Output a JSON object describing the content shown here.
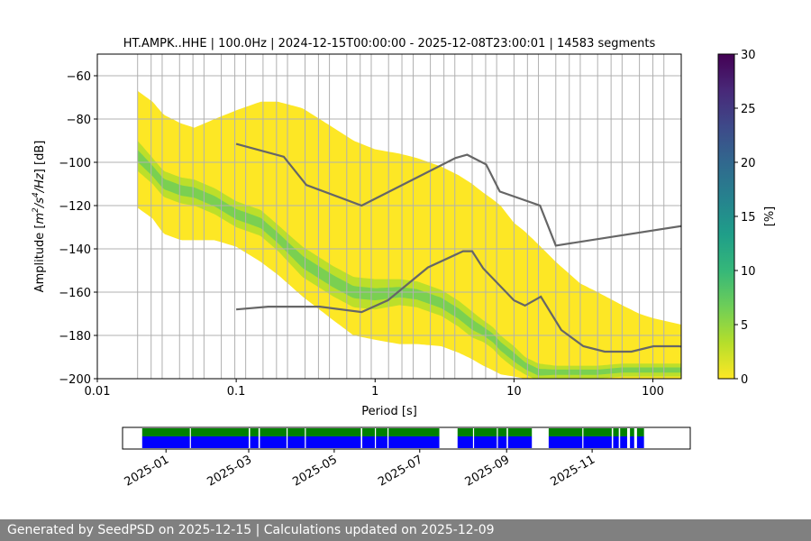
{
  "chart_data": {
    "type": "heatmap",
    "title": "HT.AMPK..HHE | 100.0Hz | 2024-12-15T00:00:00 - 2025-12-08T23:00:01 | 14583 segments",
    "xlabel": "Period [s]",
    "ylabel_parts": [
      "Amplitude [",
      "m",
      "2",
      "/",
      "s",
      "4",
      "/",
      "Hz",
      "] [dB]"
    ],
    "x_scale": "log",
    "xlim": [
      0.01,
      160
    ],
    "ylim": [
      -200,
      -50
    ],
    "x_ticks": [
      {
        "value": 0.01,
        "label": "0.01"
      },
      {
        "value": 0.1,
        "label": "0.1"
      },
      {
        "value": 1,
        "label": "1"
      },
      {
        "value": 10,
        "label": "10"
      },
      {
        "value": 100,
        "label": "100"
      }
    ],
    "y_ticks": [
      {
        "value": -60,
        "label": "−60"
      },
      {
        "value": -80,
        "label": "−80"
      },
      {
        "value": -100,
        "label": "−100"
      },
      {
        "value": -120,
        "label": "−120"
      },
      {
        "value": -140,
        "label": "−140"
      },
      {
        "value": -160,
        "label": "−160"
      },
      {
        "value": -180,
        "label": "−180"
      },
      {
        "value": -200,
        "label": "−200"
      }
    ],
    "grid": true,
    "period_gridlines": [
      0.0195,
      0.0244,
      0.0293,
      0.0391,
      0.0488,
      0.0586,
      0.0781,
      0.0977,
      0.117,
      0.156,
      0.195,
      0.234,
      0.313,
      0.391,
      0.469,
      0.625,
      0.781,
      0.938,
      1.25,
      1.56,
      1.88,
      2.5,
      3.13,
      3.75,
      5.0,
      6.25,
      7.5,
      10.0,
      12.5,
      15.0,
      20.0,
      25.0,
      30.0,
      40.0,
      50.0,
      60.0,
      80.0,
      100.0,
      120.0,
      160.0
    ],
    "density_band": {
      "period": [
        0.0195,
        0.025,
        0.03,
        0.04,
        0.05,
        0.07,
        0.1,
        0.15,
        0.2,
        0.3,
        0.5,
        0.7,
        1,
        1.5,
        2,
        3,
        4,
        5,
        6,
        7,
        8,
        10,
        12,
        15,
        20,
        30,
        40,
        60,
        80,
        100,
        160
      ],
      "upper_db": [
        -67,
        -72,
        -78,
        -82,
        -84,
        -80,
        -76,
        -72,
        -72,
        -75,
        -84,
        -90,
        -94,
        -96,
        -98,
        -102,
        -106,
        -110,
        -114,
        -117,
        -120,
        -128,
        -132,
        -138,
        -146,
        -156,
        -160,
        -166,
        -170,
        -172,
        -175
      ],
      "lower_db": [
        -121,
        -126,
        -133,
        -136,
        -136,
        -136,
        -139,
        -146,
        -152,
        -162,
        -173,
        -180,
        -182,
        -184,
        -184,
        -185,
        -188,
        -191,
        -194,
        -196,
        -198,
        -199,
        -200,
        -200,
        -200,
        -200,
        -200,
        -200,
        -200,
        -200,
        -200
      ],
      "mode_db": [
        -97,
        -104,
        -110,
        -113,
        -114,
        -118,
        -124,
        -128,
        -135,
        -146,
        -155,
        -160,
        -161,
        -160,
        -161,
        -165,
        -170,
        -175,
        -178,
        -181,
        -185,
        -190,
        -194,
        -197,
        -197,
        -197,
        -197,
        -196,
        -196,
        -196,
        -196
      ],
      "mode_width_db": [
        7,
        6,
        6,
        6,
        6,
        6,
        6,
        6,
        6,
        7,
        7,
        7,
        7,
        6,
        6,
        6,
        6,
        6,
        5,
        5,
        5,
        5,
        4,
        4,
        3,
        3,
        3,
        3,
        3,
        3,
        3
      ]
    },
    "nhnm": {
      "name": "NHNM",
      "period": [
        0.1,
        0.22,
        0.32,
        0.8,
        3.8,
        4.6,
        6.3,
        7.9,
        15.4,
        20,
        354.8
      ],
      "db": [
        -91.5,
        -97.4,
        -110.5,
        -120,
        -98,
        -96.5,
        -101,
        -113.5,
        -120,
        -138.5,
        -126
      ]
    },
    "nlnm": {
      "name": "NLNM",
      "period": [
        0.1,
        0.17,
        0.4,
        0.8,
        1.24,
        2.4,
        4.3,
        5,
        6,
        10,
        12,
        15.6,
        21.9,
        31.6,
        45,
        70,
        101,
        154,
        328,
        600
      ],
      "db": [
        -168,
        -166.7,
        -166.7,
        -169.2,
        -163.7,
        -148.6,
        -141.1,
        -141.1,
        -149,
        -163.8,
        -166.2,
        -162.1,
        -177.5,
        -185,
        -187.5,
        -187.5,
        -185,
        -185,
        -187.5,
        -184.4
      ]
    },
    "colorbar": {
      "label": "[%]",
      "range": [
        0,
        30
      ],
      "tick_values": [
        0,
        5,
        10,
        15,
        20,
        25,
        30
      ],
      "tick_labels": [
        "0",
        "5",
        "10",
        "15",
        "20",
        "25",
        "30"
      ],
      "colors": [
        "#fde725",
        "#b5de2b",
        "#6ece58",
        "#35b779",
        "#1f9e89",
        "#26828e",
        "#31688e",
        "#3e4989",
        "#482878",
        "#440154"
      ]
    },
    "availability": {
      "date_range": [
        "2024-12-01",
        "2026-01-10"
      ],
      "tick_labels": [
        "2025-01",
        "2025-03",
        "2025-05",
        "2025-07",
        "2025-09",
        "2025-11"
      ],
      "tick_dates": [
        "2025-01-01",
        "2025-03-01",
        "2025-05-01",
        "2025-07-01",
        "2025-09-01",
        "2025-11-01"
      ],
      "data_color": "#0000ff",
      "processed_color": "#008000",
      "segments": [
        [
          "2024-12-15",
          "2025-03-01"
        ],
        [
          "2025-03-02",
          "2025-03-08"
        ],
        [
          "2025-03-09",
          "2025-05-20"
        ],
        [
          "2025-05-21",
          "2025-07-15"
        ],
        [
          "2025-07-28",
          "2025-09-01"
        ],
        [
          "2025-09-02",
          "2025-09-19"
        ],
        [
          "2025-10-01",
          "2025-11-15"
        ],
        [
          "2025-11-16",
          "2025-11-20"
        ],
        [
          "2025-11-21",
          "2025-11-26"
        ],
        [
          "2025-11-28",
          "2025-12-01"
        ],
        [
          "2025-12-03",
          "2025-12-08"
        ]
      ],
      "gaps": [
        "2025-01-18",
        "2025-03-28",
        "2025-04-10",
        "2025-05-30",
        "2025-06-08",
        "2025-08-08",
        "2025-08-25",
        "2025-10-25"
      ]
    }
  },
  "footer": {
    "text": "Generated by SeedPSD on 2025-12-15 | Calculations updated on 2025-12-09"
  }
}
